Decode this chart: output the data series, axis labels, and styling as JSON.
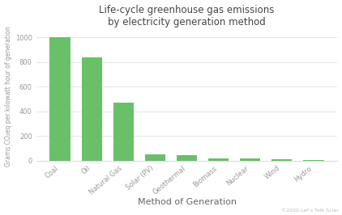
{
  "title": "Life-cycle greenhouse gas emissions\nby electricity generation method",
  "xlabel": "Method of Generation",
  "ylabel": "Grams CO₂eq per kilowatt hour of generation",
  "categories": [
    "Coal",
    "Oil",
    "Natural Gas",
    "Solar (PV)",
    "Geothermal",
    "Biomass",
    "Nuclear",
    "Wind",
    "Hydro"
  ],
  "values": [
    1000,
    840,
    469,
    48,
    45,
    18,
    16,
    11,
    4
  ],
  "bar_color": "#6abf69",
  "background_color": "#ffffff",
  "grid_color": "#e0e0e0",
  "yticks": [
    0,
    200,
    400,
    600,
    800,
    1000
  ],
  "ylim": [
    0,
    1050
  ],
  "annotation": "©2020 Let’s Talk Scier",
  "title_fontsize": 8.5,
  "xlabel_fontsize": 8,
  "ylabel_fontsize": 5.5,
  "tick_fontsize": 6,
  "annotation_fontsize": 4.5
}
